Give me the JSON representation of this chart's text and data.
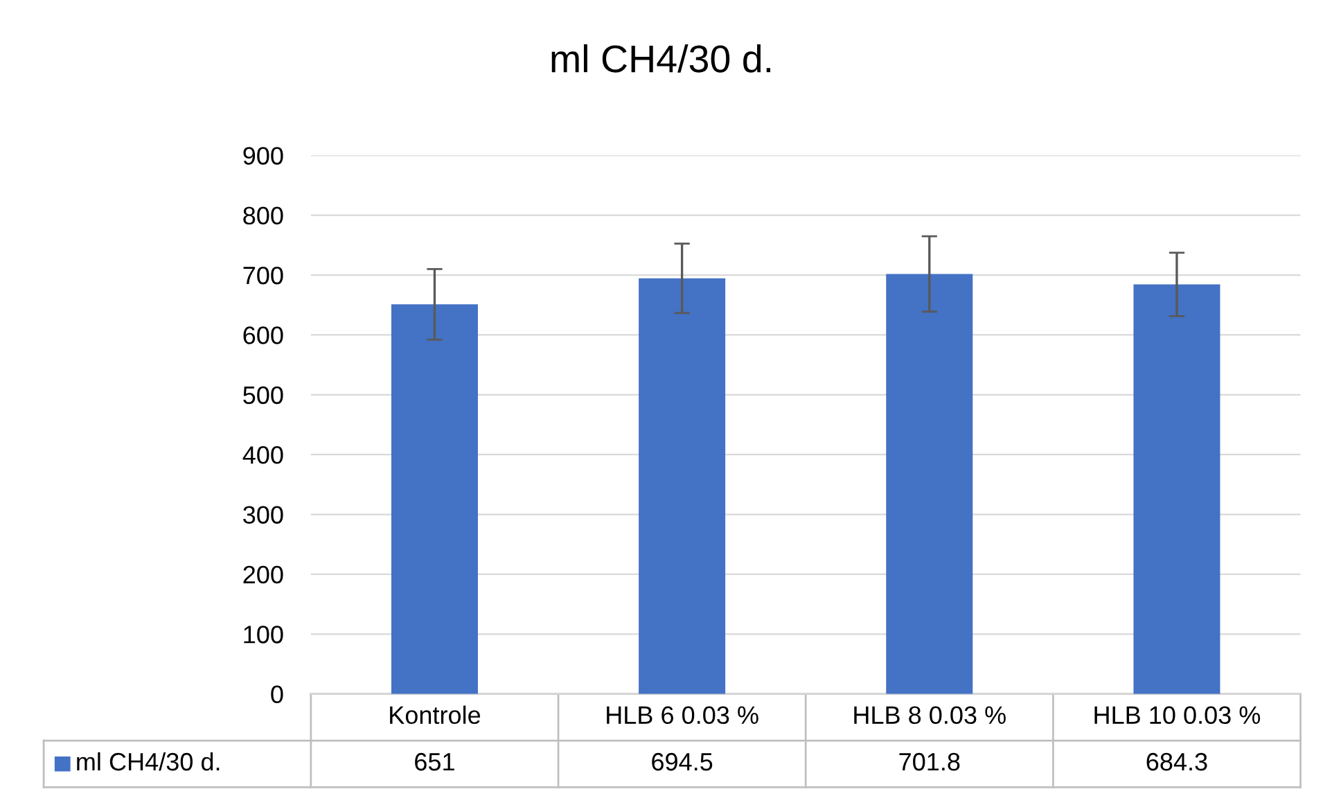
{
  "chart_data": {
    "type": "bar",
    "title": "ml CH4/30 d.",
    "categories": [
      "Kontrole",
      "HLB 6 0.03 %",
      "HLB 8 0.03 %",
      "HLB 10 0.03 %"
    ],
    "series": [
      {
        "name": "ml CH4/30 d.",
        "color": "#4472c4",
        "values": [
          651,
          694.5,
          701.8,
          684.3
        ],
        "errors": [
          59,
          58,
          63,
          53
        ]
      }
    ],
    "ylim": [
      0,
      900
    ],
    "yticks": [
      0,
      100,
      200,
      300,
      400,
      500,
      600,
      700,
      800,
      900
    ],
    "grid": "y",
    "legend": "bottom",
    "data_labels": true
  }
}
